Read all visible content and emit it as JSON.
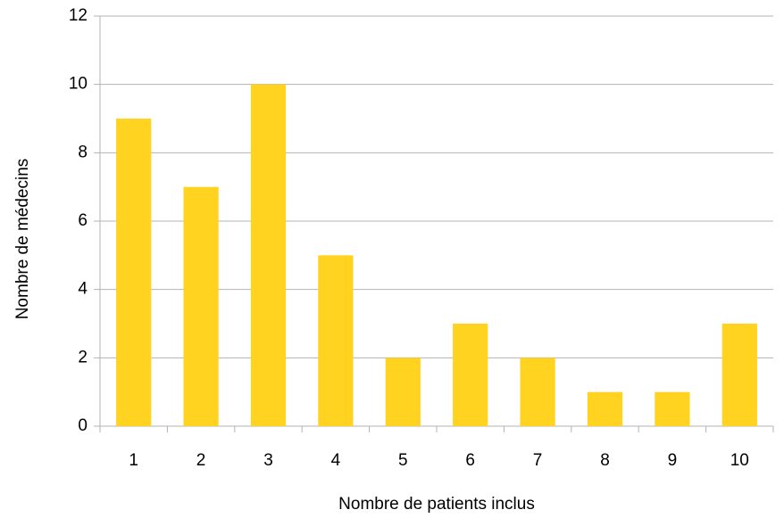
{
  "chart_data": {
    "type": "bar",
    "xlabel": "Nombre de patients inclus",
    "ylabel": "Nombre de médecins",
    "categories": [
      "1",
      "2",
      "3",
      "4",
      "5",
      "6",
      "7",
      "8",
      "9",
      "10"
    ],
    "values": [
      9,
      7,
      10,
      5,
      2,
      3,
      2,
      1,
      1,
      3
    ],
    "color": "#ffd320",
    "ylim": [
      0,
      12
    ],
    "yticks": [
      0,
      2,
      4,
      6,
      8,
      10,
      12
    ],
    "grid": true
  }
}
